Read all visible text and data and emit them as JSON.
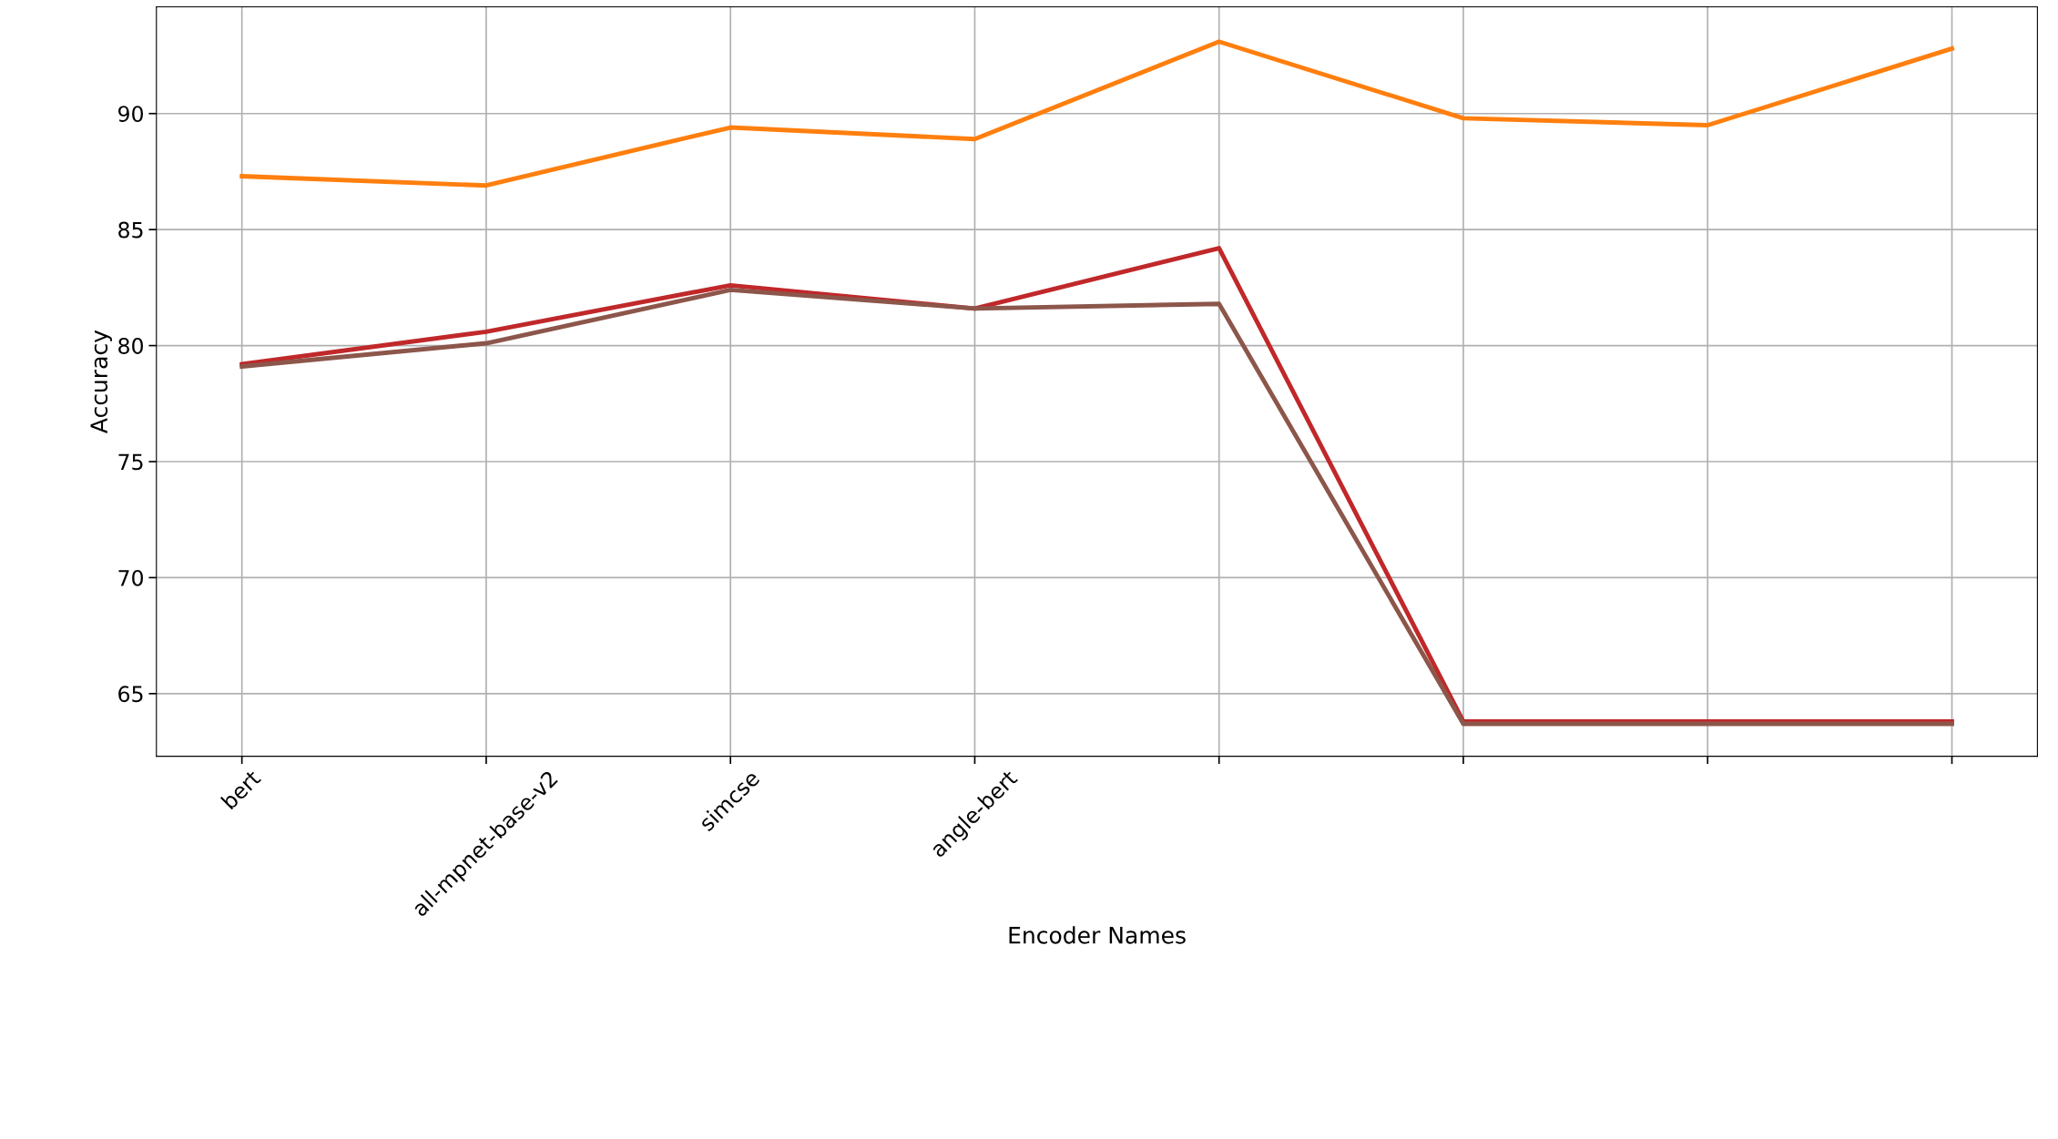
{
  "chart_data": {
    "type": "line",
    "xlabel": "Encoder Names",
    "ylabel": "Accuracy",
    "categories": [
      "bert",
      "all-mpnet-base-v2",
      "simcse",
      "angle-bert",
      null,
      null,
      null,
      null
    ],
    "series": [
      {
        "color": "#ff7f0e",
        "values": [
          87.3,
          86.9,
          89.4,
          88.9,
          93.1,
          89.8,
          89.5,
          92.8
        ]
      },
      {
        "color": "#c0282a",
        "values": [
          79.2,
          80.6,
          82.6,
          81.6,
          84.2,
          63.8,
          63.8,
          63.8
        ]
      },
      {
        "color": "#8c564b",
        "values": [
          79.1,
          80.1,
          82.4,
          81.6,
          81.8,
          63.7,
          63.7,
          63.7
        ]
      }
    ],
    "ylim": [
      62.3,
      94.6
    ],
    "yticks": [
      65,
      70,
      75,
      80,
      85,
      90
    ],
    "grid": true,
    "line_style": "solid",
    "marker": "none"
  }
}
